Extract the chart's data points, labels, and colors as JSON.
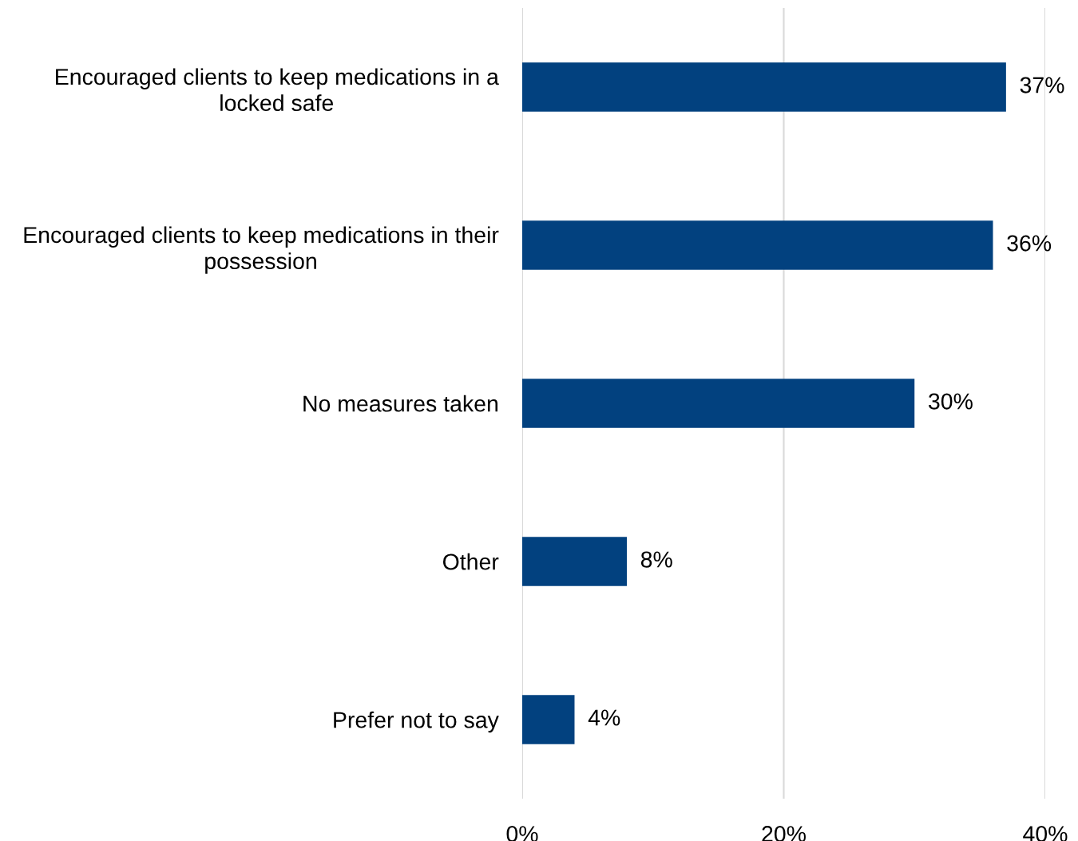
{
  "chart_data": {
    "type": "bar",
    "orientation": "horizontal",
    "categories": [
      "Encouraged clients to keep medications in a locked safe",
      "Encouraged clients to keep medications in their possession",
      "No measures taken",
      "Other",
      "Prefer not to say"
    ],
    "values": [
      37,
      36,
      30,
      8,
      4
    ],
    "color": "#02417f",
    "value_labels": [
      "37%",
      "36%",
      "30%",
      "8%",
      "4%"
    ],
    "xlim": [
      0,
      40
    ],
    "xticks": [
      {
        "value": 0,
        "label": "0%"
      },
      {
        "value": 20,
        "label": "20%"
      },
      {
        "value": 40,
        "label": "40%"
      }
    ],
    "grid": "x",
    "legend": false
  }
}
